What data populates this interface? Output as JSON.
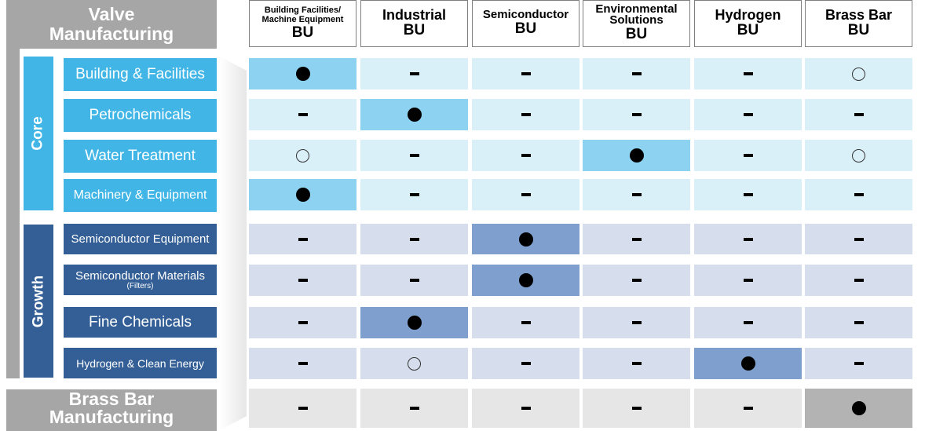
{
  "valve_header": [
    "Valve",
    "Manufacturing"
  ],
  "brass_header": [
    "Brass Bar",
    "Manufacturing"
  ],
  "bands": {
    "core": "Core",
    "growth": "Growth"
  },
  "columns": [
    {
      "name": [
        "Building Facilities/",
        "Machine Equipment"
      ],
      "bu": "BU"
    },
    {
      "name": [
        "Industrial"
      ],
      "bu": "BU"
    },
    {
      "name": [
        "Semiconductor"
      ],
      "bu": "BU"
    },
    {
      "name": [
        "Environmental",
        "Solutions"
      ],
      "bu": "BU"
    },
    {
      "name": [
        "Hydrogen"
      ],
      "bu": "BU"
    },
    {
      "name": [
        "Brass Bar"
      ],
      "bu": "BU"
    }
  ],
  "segments": [
    {
      "label": "Building & Facilities",
      "group": "core"
    },
    {
      "label": "Petrochemicals",
      "group": "core"
    },
    {
      "label": "Water Treatment",
      "group": "core"
    },
    {
      "label": "Machinery & Equipment",
      "group": "core"
    },
    {
      "label": "Semiconductor Equipment",
      "group": "growth"
    },
    {
      "label": "Semiconductor Materials",
      "sub": "(Filters)",
      "group": "growth"
    },
    {
      "label": "Fine Chemicals",
      "group": "growth"
    },
    {
      "label": "Hydrogen & Clean Energy",
      "group": "growth"
    },
    {
      "label": "",
      "group": "brass"
    }
  ],
  "matrix": [
    [
      "dot",
      "dash",
      "dash",
      "dash",
      "dash",
      "ring"
    ],
    [
      "dash",
      "dot",
      "dash",
      "dash",
      "dash",
      "dash"
    ],
    [
      "ring",
      "dash",
      "dash",
      "dot",
      "dash",
      "ring"
    ],
    [
      "dot",
      "dash",
      "dash",
      "dash",
      "dash",
      "dash"
    ],
    [
      "dash",
      "dash",
      "dot",
      "dash",
      "dash",
      "dash"
    ],
    [
      "dash",
      "dash",
      "dot",
      "dash",
      "dash",
      "dash"
    ],
    [
      "dash",
      "dot",
      "dash",
      "dash",
      "dash",
      "dash"
    ],
    [
      "dash",
      "ring",
      "dash",
      "dash",
      "dot",
      "dash"
    ],
    [
      "dash",
      "dash",
      "dash",
      "dash",
      "dash",
      "dot"
    ]
  ],
  "colors": {
    "core_band": "#41b6e6",
    "growth_band": "#335f96",
    "gray": "#a6a6a6",
    "core_cell": "#daf0f9",
    "core_cell_highlight": "#8dd3f1",
    "growth_cell": "#d6deed",
    "growth_cell_highlight": "#7f9fce",
    "brass_cell": "#e6e6e6",
    "brass_cell_highlight": "#b3b3b3"
  }
}
